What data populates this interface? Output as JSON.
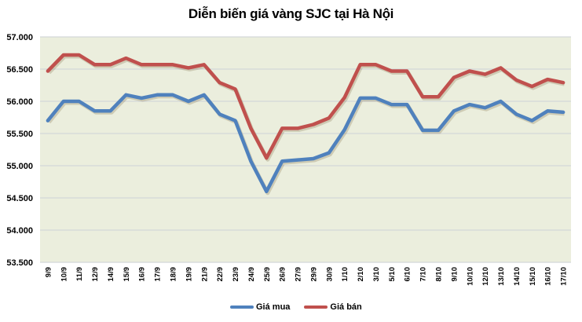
{
  "chart_data": {
    "type": "line",
    "title": "Diễn biến giá vàng SJC tại Hà Nội",
    "xlabel": "",
    "ylabel": "",
    "ylim": [
      53500,
      57000
    ],
    "ytick_step": 500,
    "ytick_labels": [
      "53.500",
      "54.000",
      "54.500",
      "55.000",
      "55.500",
      "56.000",
      "56.500",
      "57.000"
    ],
    "grid": true,
    "legend_position": "bottom",
    "categories": [
      "9/9",
      "10/9",
      "11/9",
      "12/9",
      "14/9",
      "15/9",
      "16/9",
      "17/9",
      "18/9",
      "19/9",
      "21/9",
      "22/9",
      "23/9",
      "24/9",
      "25/9",
      "26/9",
      "27/9",
      "29/9",
      "30/9",
      "1/10",
      "2/10",
      "3/10",
      "5/10",
      "6/10",
      "7/10",
      "8/10",
      "9/10",
      "10/10",
      "12/10",
      "13/10",
      "14/10",
      "15/10",
      "16/10",
      "17/10"
    ],
    "series": [
      {
        "name": "Giá mua",
        "color": "#4F81BD",
        "values": [
          55700,
          56000,
          56000,
          55850,
          55850,
          56100,
          56050,
          56100,
          56100,
          56000,
          56100,
          55800,
          55700,
          55070,
          54600,
          55070,
          55090,
          55110,
          55200,
          55560,
          56050,
          56050,
          55950,
          55950,
          55550,
          55550,
          55850,
          55950,
          55900,
          56000,
          55800,
          55700,
          55850,
          55830
        ]
      },
      {
        "name": "Giá bán",
        "color": "#C0504D",
        "values": [
          56470,
          56720,
          56720,
          56570,
          56570,
          56670,
          56570,
          56570,
          56570,
          56520,
          56570,
          56290,
          56190,
          55580,
          55120,
          55580,
          55580,
          55640,
          55740,
          56060,
          56570,
          56570,
          56470,
          56470,
          56070,
          56070,
          56370,
          56470,
          56420,
          56520,
          56330,
          56230,
          56340,
          56290
        ]
      }
    ]
  },
  "legend": {
    "items": [
      {
        "label": "Giá mua",
        "color": "#4F81BD"
      },
      {
        "label": "Giá bán",
        "color": "#C0504D"
      }
    ]
  },
  "colors": {
    "plot_background": "#EBEEDD",
    "gridline": "#D4D7D9"
  }
}
